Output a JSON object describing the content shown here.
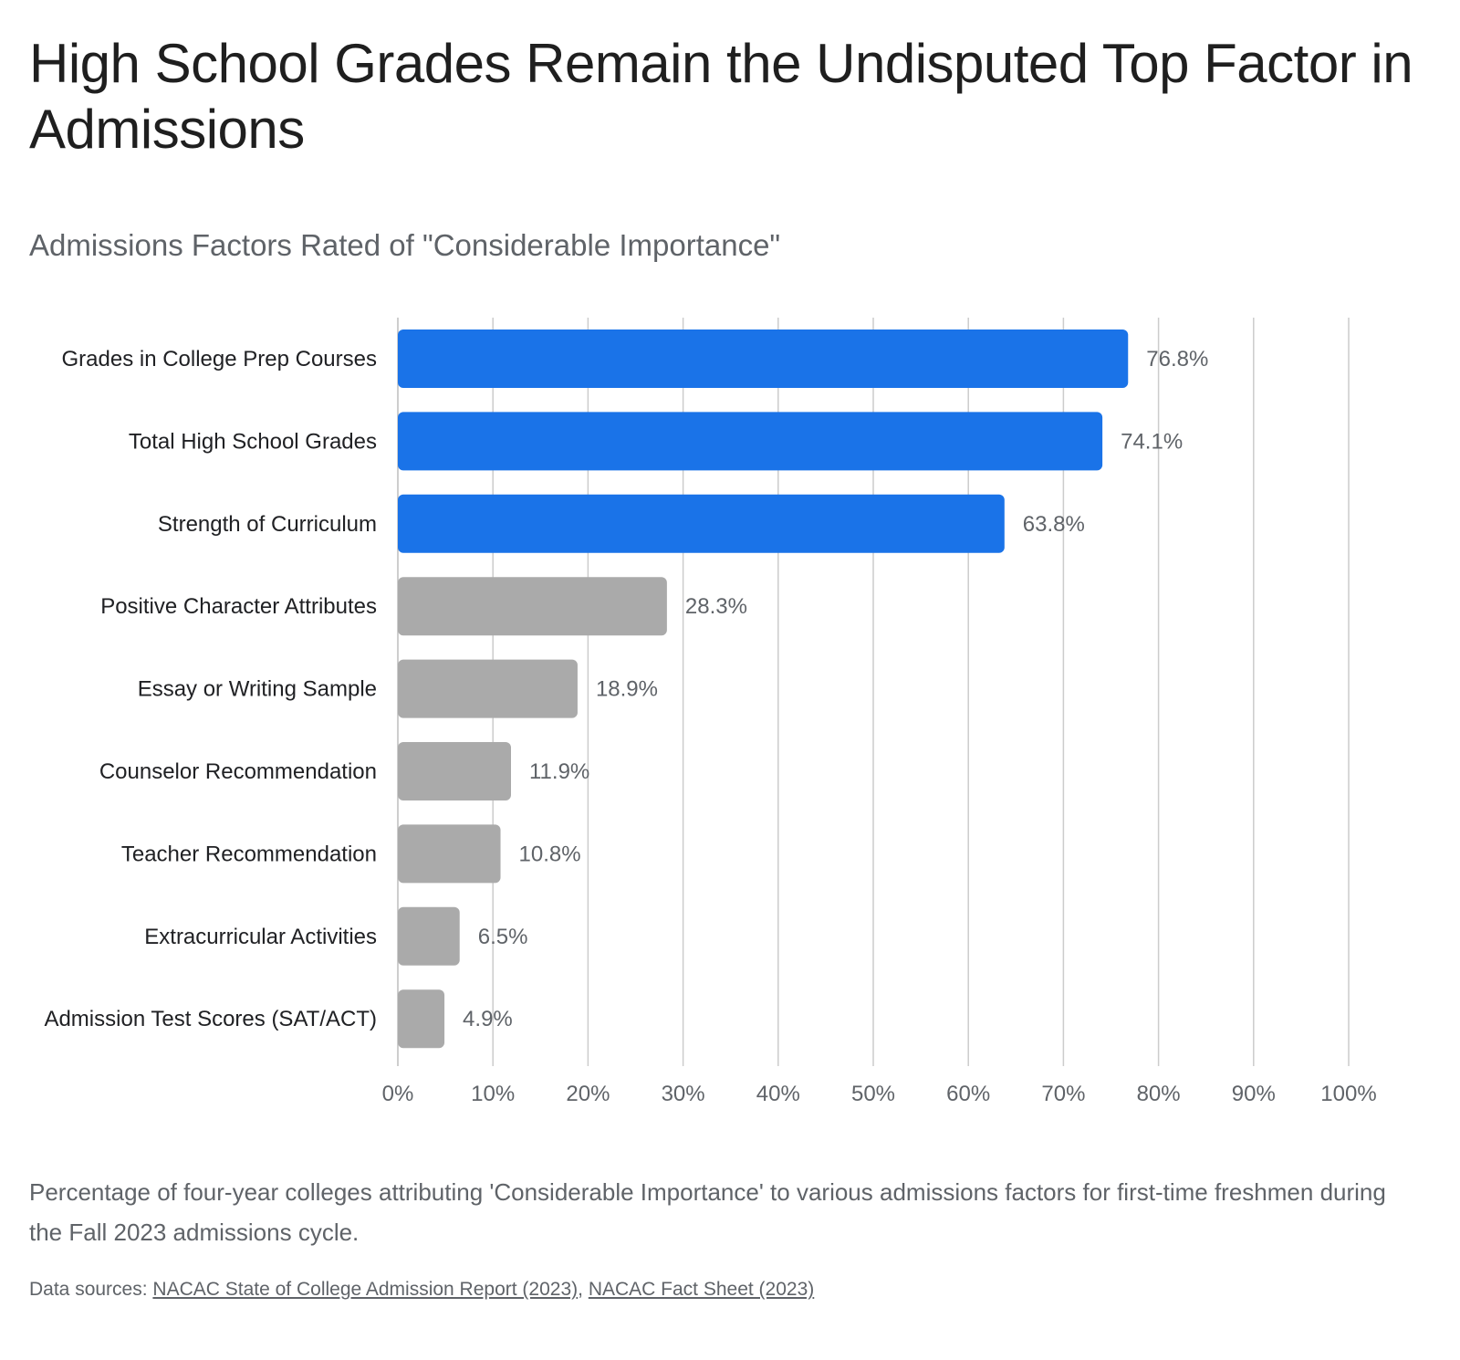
{
  "header": {
    "title": "High School Grades Remain the Undisputed Top Factor in Admissions",
    "subtitle": "Admissions Factors Rated of \"Considerable Importance\""
  },
  "chart_data": {
    "type": "bar",
    "orientation": "horizontal",
    "categories": [
      "Grades in College Prep Courses",
      "Total High School Grades",
      "Strength of Curriculum",
      "Positive Character Attributes",
      "Essay or Writing Sample",
      "Counselor Recommendation",
      "Teacher Recommendation",
      "Extracurricular Activities",
      "Admission Test Scores (SAT/ACT)"
    ],
    "values": [
      76.8,
      74.1,
      63.8,
      28.3,
      18.9,
      11.9,
      10.8,
      6.5,
      4.9
    ],
    "value_labels": [
      "76.8%",
      "74.1%",
      "63.8%",
      "28.3%",
      "18.9%",
      "11.9%",
      "10.8%",
      "6.5%",
      "4.9%"
    ],
    "highlighted": [
      true,
      true,
      true,
      false,
      false,
      false,
      false,
      false,
      false
    ],
    "colors": {
      "highlight": "#1a73e8",
      "default": "#aaaaaa",
      "grid": "#cccccc"
    },
    "xlim": [
      0,
      100
    ],
    "x_ticks": [
      0,
      10,
      20,
      30,
      40,
      50,
      60,
      70,
      80,
      90,
      100
    ],
    "x_tick_labels": [
      "0%",
      "10%",
      "20%",
      "30%",
      "40%",
      "50%",
      "60%",
      "70%",
      "80%",
      "90%",
      "100%"
    ],
    "grid": true,
    "legend": "none",
    "xlabel": "",
    "ylabel": ""
  },
  "footer": {
    "caption": "Percentage of four-year colleges attributing 'Considerable Importance' to various admissions factors for first-time freshmen during the Fall 2023 admissions cycle.",
    "sources_prefix": "Data sources: ",
    "source_1": "NACAC State of College Admission Report (2023)",
    "separator": ", ",
    "source_2": "NACAC Fact Sheet (2023)"
  }
}
